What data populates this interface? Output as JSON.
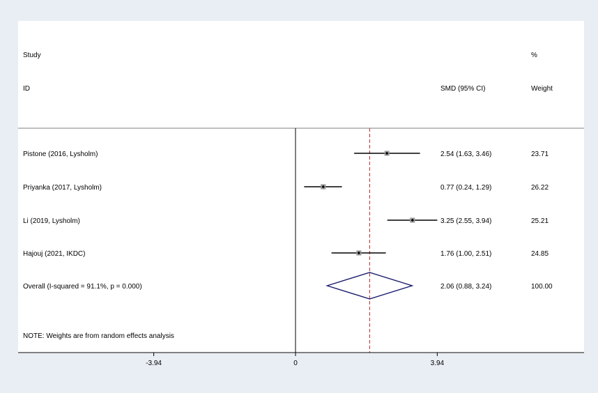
{
  "chart_data": {
    "type": "forest",
    "header": {
      "study_line1": "Study",
      "study_line2": "ID",
      "effect_label": "SMD (95% CI)",
      "weight_line1": "%",
      "weight_line2": "Weight"
    },
    "studies": [
      {
        "label": "Pistone (2016, Lysholm)",
        "estimate": 2.54,
        "lower": 1.63,
        "upper": 3.46,
        "ci_text": "2.54 (1.63, 3.46)",
        "weight": 23.71,
        "weight_text": "23.71"
      },
      {
        "label": "Priyanka (2017, Lysholm)",
        "estimate": 0.77,
        "lower": 0.24,
        "upper": 1.29,
        "ci_text": "0.77 (0.24, 1.29)",
        "weight": 26.22,
        "weight_text": "26.22"
      },
      {
        "label": "Li (2019, Lysholm)",
        "estimate": 3.25,
        "lower": 2.55,
        "upper": 3.94,
        "ci_text": "3.25 (2.55, 3.94)",
        "weight": 25.21,
        "weight_text": "25.21"
      },
      {
        "label": "Hajouj (2021, IKDC)",
        "estimate": 1.76,
        "lower": 1.0,
        "upper": 2.51,
        "ci_text": "1.76 (1.00, 2.51)",
        "weight": 24.85,
        "weight_text": "24.85"
      }
    ],
    "overall": {
      "label": "Overall  (I-squared = 91.1%, p = 0.000)",
      "estimate": 2.06,
      "lower": 0.88,
      "upper": 3.24,
      "ci_text": "2.06 (0.88, 3.24)",
      "weight_text": "100.00"
    },
    "note": "NOTE: Weights are from random effects analysis",
    "x_ticks": [
      -3.94,
      0,
      3.94
    ],
    "x_tick_labels": [
      "-3.94",
      "0",
      "3.94"
    ],
    "xlim": [
      -7.71,
      8.02
    ],
    "colors": {
      "background": "#e8eef3",
      "plot_area": "#ffffff",
      "ci_line": "#000000",
      "overall_diamond": "#1a1a6e",
      "overall_line": "#b22222",
      "box_fill": "#9a9a9a"
    }
  }
}
